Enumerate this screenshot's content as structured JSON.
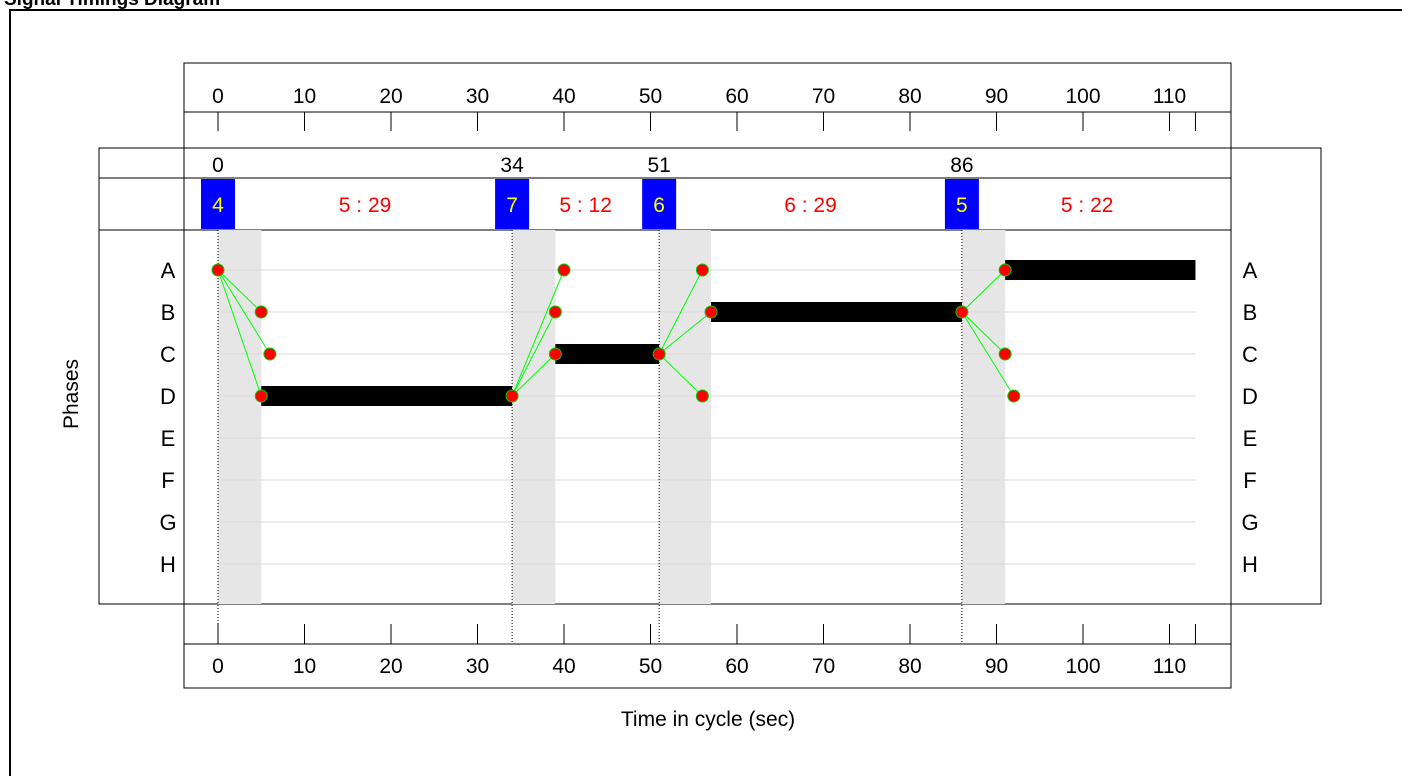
{
  "title": "Signal Timings Diagram",
  "y_axis_label": "Phases",
  "x_axis_label": "Time in cycle (sec)",
  "phases": [
    "A",
    "B",
    "C",
    "D",
    "E",
    "F",
    "G",
    "H"
  ],
  "time_ticks": [
    0,
    10,
    20,
    30,
    40,
    50,
    60,
    70,
    80,
    90,
    100,
    110
  ],
  "cycle_time": 113,
  "stage_start_times": [
    0,
    34,
    51,
    86
  ],
  "stages": [
    {
      "stage": "4",
      "start": 0,
      "intergreen_end": 5,
      "label": "5 : 29"
    },
    {
      "stage": "7",
      "start": 34,
      "intergreen_end": 39,
      "label": "5 : 12"
    },
    {
      "stage": "6",
      "start": 51,
      "intergreen_end": 57,
      "label": "6 : 29"
    },
    {
      "stage": "5",
      "start": 86,
      "intergreen_end": 91,
      "label": "5 : 22"
    }
  ],
  "green_bars": [
    {
      "phase": "D",
      "start": 5,
      "end": 34
    },
    {
      "phase": "C",
      "start": 39,
      "end": 51
    },
    {
      "phase": "B",
      "start": 57,
      "end": 86
    },
    {
      "phase": "A",
      "start": 91,
      "end": 113
    }
  ],
  "links": [
    {
      "from": {
        "phase": "A",
        "t": 0
      },
      "to": {
        "phase": "B",
        "t": 5
      }
    },
    {
      "from": {
        "phase": "A",
        "t": 0
      },
      "to": {
        "phase": "C",
        "t": 6
      }
    },
    {
      "from": {
        "phase": "A",
        "t": 0
      },
      "to": {
        "phase": "D",
        "t": 5
      }
    },
    {
      "from": {
        "phase": "D",
        "t": 34
      },
      "to": {
        "phase": "A",
        "t": 40
      }
    },
    {
      "from": {
        "phase": "D",
        "t": 34
      },
      "to": {
        "phase": "B",
        "t": 39
      }
    },
    {
      "from": {
        "phase": "D",
        "t": 34
      },
      "to": {
        "phase": "C",
        "t": 39
      }
    },
    {
      "from": {
        "phase": "C",
        "t": 51
      },
      "to": {
        "phase": "A",
        "t": 56
      }
    },
    {
      "from": {
        "phase": "C",
        "t": 51
      },
      "to": {
        "phase": "B",
        "t": 57
      }
    },
    {
      "from": {
        "phase": "C",
        "t": 51
      },
      "to": {
        "phase": "D",
        "t": 56
      }
    },
    {
      "from": {
        "phase": "B",
        "t": 86
      },
      "to": {
        "phase": "A",
        "t": 91
      }
    },
    {
      "from": {
        "phase": "B",
        "t": 86
      },
      "to": {
        "phase": "C",
        "t": 91
      }
    },
    {
      "from": {
        "phase": "B",
        "t": 86
      },
      "to": {
        "phase": "D",
        "t": 92
      }
    }
  ],
  "colors": {
    "stage_box": "#0000ff",
    "stage_number": "#ffff00",
    "stage_label": "#ff0000",
    "intergreen_shade": "#e6e6e6",
    "green_bar": "#000000",
    "link_line": "#00ff00",
    "node_fill": "#ff0000",
    "node_stroke": "#00cc00",
    "grid_line": "#d9d9d9"
  }
}
